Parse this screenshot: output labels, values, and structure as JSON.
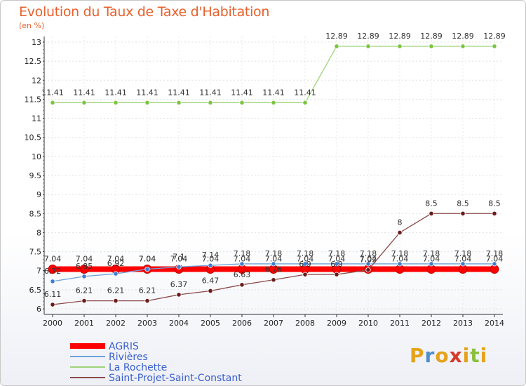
{
  "title": "Evolution du Taux de Taxe d'Habitation",
  "subtitle": "(en %)",
  "logo": {
    "text": "Proxiti",
    "colors": [
      "#e6a21a",
      "#4f8ec9",
      "#e6a21a",
      "#d63a2a",
      "#e6a21a",
      "#8bbf3b",
      "#e6a21a"
    ]
  },
  "chart_data": {
    "type": "line",
    "x": [
      2000,
      2001,
      2002,
      2003,
      2004,
      2005,
      2006,
      2007,
      2008,
      2009,
      2010,
      2011,
      2012,
      2013,
      2014
    ],
    "ylim": [
      6,
      13
    ],
    "yticks": [
      "6",
      "6.5",
      "7",
      "7.5",
      "8",
      "8.5",
      "9",
      "9.5",
      "10",
      "10.5",
      "11",
      "11.5",
      "12",
      "12.5",
      "13"
    ],
    "grid": true,
    "legend_position": "bottom-left",
    "series": [
      {
        "name": "AGRIS",
        "color": "#ff0000",
        "width": 8,
        "values": [
          7.04,
          7.04,
          7.04,
          7.04,
          7.04,
          7.04,
          7.04,
          7.04,
          7.04,
          7.04,
          7.04,
          7.04,
          7.04,
          7.04,
          7.04
        ],
        "labels": [
          "7.04",
          "7.04",
          "7.04",
          "7.04",
          "7.04",
          "7.04",
          "7.04",
          "7.04",
          "7.04",
          "7.04",
          "7.04",
          "7.04",
          "7.04",
          "7.04",
          "7.04"
        ]
      },
      {
        "name": "Rivières",
        "color": "#6fa0d8",
        "width": 1.3,
        "marker": "#3d7fd0",
        "values": [
          6.72,
          6.85,
          6.92,
          7.04,
          7.1,
          7.14,
          7.18,
          7.18,
          7.18,
          7.18,
          7.18,
          7.18,
          7.18,
          7.18,
          7.18
        ],
        "labels": [
          "6.72",
          "6.85",
          "6.92",
          "7.04",
          "7.1",
          "7.14",
          "7.18",
          "7.18",
          "7.18",
          "7.18",
          "7.18",
          "7.18",
          "7.18",
          "7.18",
          "7.18"
        ]
      },
      {
        "name": "La Rochette",
        "color": "#9fd47a",
        "width": 1.3,
        "marker": "#7cc543",
        "values": [
          11.41,
          11.41,
          11.41,
          11.41,
          11.41,
          11.41,
          11.41,
          11.41,
          11.41,
          12.89,
          12.89,
          12.89,
          12.89,
          12.89,
          12.89
        ],
        "labels": [
          "11.41",
          "11.41",
          "11.41",
          "11.41",
          "11.41",
          "11.41",
          "11.41",
          "11.41",
          "11.41",
          "12.89",
          "12.89",
          "12.89",
          "12.89",
          "12.89",
          "12.89"
        ]
      },
      {
        "name": "Saint-Projet-Saint-Constant",
        "color": "#8a4a4a",
        "width": 1.3,
        "marker": "#6b1a1a",
        "values": [
          6.11,
          6.21,
          6.21,
          6.21,
          6.37,
          6.47,
          6.63,
          6.76,
          6.9,
          6.9,
          7.02,
          8,
          8.5,
          8.5,
          8.5
        ],
        "labels": [
          "6.11",
          "6.21",
          "6.21",
          "6.21",
          "6.37",
          "6.47",
          "6.63",
          "6.76",
          "6.9",
          "6.9",
          "7.02",
          "8",
          "8.5",
          "8.5",
          "8.5"
        ]
      }
    ]
  }
}
